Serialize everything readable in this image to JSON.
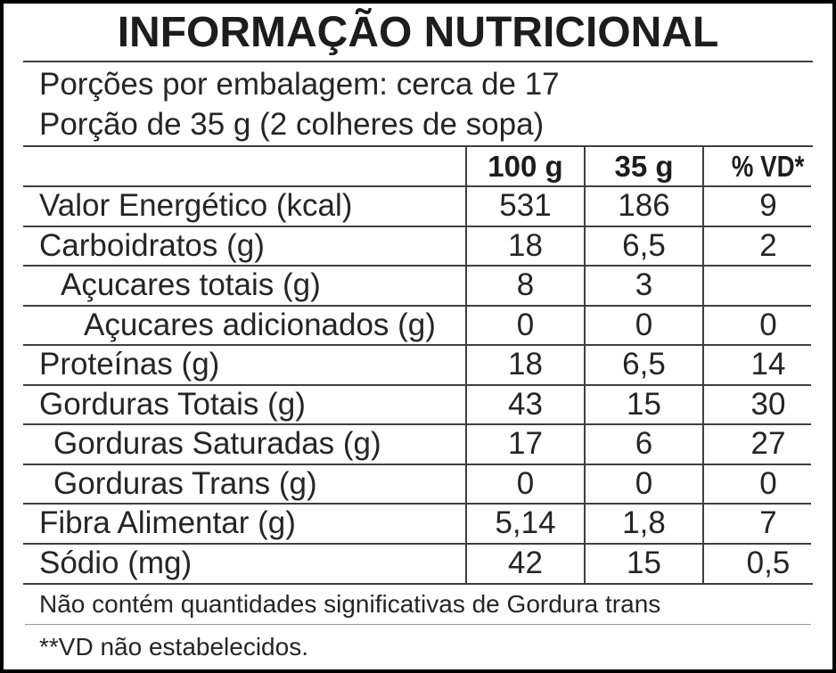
{
  "title": "INFORMAÇÃO NUTRICIONAL",
  "serving_info": {
    "line1": "Porções por embalagem: cerca de 17",
    "line2": "Porção de 35 g (2 colheres de sopa)"
  },
  "table": {
    "columns": [
      "",
      "100 g",
      "35 g",
      "% VD*"
    ],
    "rows": [
      {
        "label": "Valor Energético (kcal)",
        "per100g": "531",
        "per35g": "186",
        "vd": "9"
      },
      {
        "label": "Carboidratos (g)",
        "per100g": "18",
        "per35g": "6,5",
        "vd": "2"
      },
      {
        "label": "Açucares totais (g)",
        "per100g": "8",
        "per35g": "3",
        "vd": ""
      },
      {
        "label": "Açucares adicionados (g)",
        "per100g": "0",
        "per35g": "0",
        "vd": "0"
      },
      {
        "label": "Proteínas (g)",
        "per100g": "18",
        "per35g": "6,5",
        "vd": "14"
      },
      {
        "label": "Gorduras Totais (g)",
        "per100g": "43",
        "per35g": "15",
        "vd": "30"
      },
      {
        "label": "Gorduras Saturadas (g)",
        "per100g": "17",
        "per35g": "6",
        "vd": "27"
      },
      {
        "label": "Gorduras Trans (g)",
        "per100g": "0",
        "per35g": "0",
        "vd": "0"
      },
      {
        "label": "Fibra Alimentar (g)",
        "per100g": "5,14",
        "per35g": "1,8",
        "vd": "7"
      },
      {
        "label": "Sódio (mg)",
        "per100g": "42",
        "per35g": "15",
        "vd": "0,5"
      }
    ]
  },
  "notes": {
    "trans_fat_note": "Não contém quantidades significativas de Gordura trans",
    "vd_footnote": "**VD não estabelecidos."
  },
  "colors": {
    "border": "#000000",
    "text": "#1f1f1f",
    "grid_line": "#3f3f3f",
    "light_line": "#9a9a9a",
    "background": "#ffffff"
  }
}
